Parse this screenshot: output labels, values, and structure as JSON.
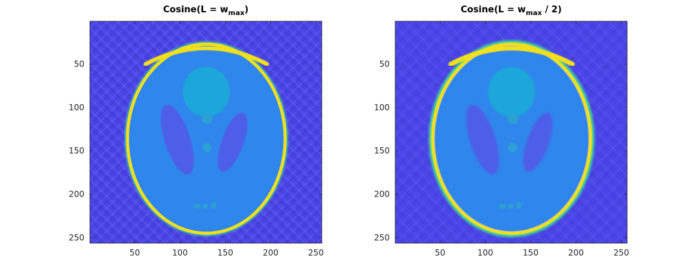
{
  "chart_data": [
    {
      "type": "heatmap",
      "image": "Shepp-Logan phantom reconstruction, filtered back-projection with cosine filter",
      "title": {
        "main": "Cosine(L = w",
        "sub": "max",
        "tail": ")"
      },
      "x_range": [
        1,
        256
      ],
      "y_range": [
        1,
        256
      ],
      "y_reversed": true,
      "xticks": [
        50,
        100,
        150,
        200,
        250
      ],
      "yticks": [
        50,
        100,
        150,
        200,
        250
      ],
      "ring_contrast": "high",
      "artifact_level": "strong"
    },
    {
      "type": "heatmap",
      "image": "Shepp-Logan phantom reconstruction, filtered back-projection with cosine filter",
      "title": {
        "main": "Cosine(L = w",
        "sub": "max",
        "tail": " / 2)"
      },
      "x_range": [
        1,
        256
      ],
      "y_range": [
        1,
        256
      ],
      "y_reversed": true,
      "xticks": [
        50,
        100,
        150,
        200,
        250
      ],
      "yticks": [
        50,
        100,
        150,
        200,
        250
      ],
      "ring_contrast": "smooth",
      "artifact_level": "moderate"
    }
  ],
  "colors": {
    "background": "#4a45e6",
    "ring": "#f2e01e",
    "ring_halo": "#3fd6a0",
    "brain": "#2f86ec",
    "head_region": "#1fa6d9",
    "ventricle": "#4d5ee8",
    "blob": "#2aa0d4"
  }
}
